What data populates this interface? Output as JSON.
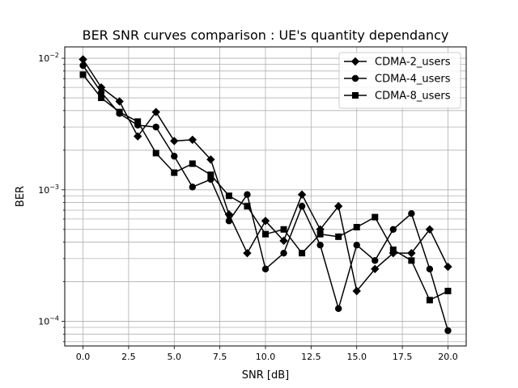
{
  "chart_data": {
    "type": "line",
    "title": "BER SNR curves comparison : UE's quantity dependancy",
    "xlabel": "SNR [dB]",
    "ylabel": "BER",
    "yscale": "log",
    "xlim": [
      -1,
      21
    ],
    "ylim": [
      6.5e-05,
      0.0122
    ],
    "grid": true,
    "legend_position": "top-right",
    "x_ticks": [
      {
        "value": 0,
        "label": "0.0"
      },
      {
        "value": 2.5,
        "label": "2.5"
      },
      {
        "value": 5,
        "label": "5.0"
      },
      {
        "value": 7.5,
        "label": "7.5"
      },
      {
        "value": 10,
        "label": "10.0"
      },
      {
        "value": 12.5,
        "label": "12.5"
      },
      {
        "value": 15,
        "label": "15.0"
      },
      {
        "value": 17.5,
        "label": "17.5"
      },
      {
        "value": 20,
        "label": "20.0"
      }
    ],
    "y_ticks": [
      {
        "value": 0.0001,
        "base": "10",
        "exp": "−4"
      },
      {
        "value": 0.001,
        "base": "10",
        "exp": "−3"
      },
      {
        "value": 0.01,
        "base": "10",
        "exp": "−2"
      }
    ],
    "x": [
      0,
      1,
      2,
      3,
      4,
      5,
      6,
      7,
      8,
      9,
      10,
      11,
      12,
      13,
      14,
      15,
      16,
      17,
      18,
      19,
      20
    ],
    "series": [
      {
        "name": "CDMA-2_users",
        "marker": "diamond",
        "color": "#000000",
        "values": [
          0.0098,
          0.006,
          0.0047,
          0.00255,
          0.0039,
          0.00235,
          0.0024,
          0.0017,
          0.00065,
          0.00033,
          0.00058,
          0.00041,
          0.00092,
          0.0005,
          0.00075,
          0.00017,
          0.00025,
          0.00033,
          0.00033,
          0.0005,
          0.00026
        ]
      },
      {
        "name": "CDMA-4_users",
        "marker": "circle",
        "color": "#000000",
        "values": [
          0.0088,
          0.0055,
          0.0038,
          0.0031,
          0.003,
          0.0018,
          0.00105,
          0.0012,
          0.00058,
          0.00092,
          0.00025,
          0.00033,
          0.00075,
          0.00038,
          0.000125,
          0.00038,
          0.00029,
          0.0005,
          0.00066,
          0.00025,
          8.5e-05
        ]
      },
      {
        "name": "CDMA-8_users",
        "marker": "square",
        "color": "#000000",
        "values": [
          0.0075,
          0.005,
          0.0039,
          0.0033,
          0.0019,
          0.00135,
          0.00158,
          0.0013,
          0.0009,
          0.00075,
          0.00046,
          0.0005,
          0.00033,
          0.00046,
          0.00044,
          0.00052,
          0.00062,
          0.00035,
          0.00029,
          0.000145,
          0.00017
        ]
      }
    ]
  }
}
